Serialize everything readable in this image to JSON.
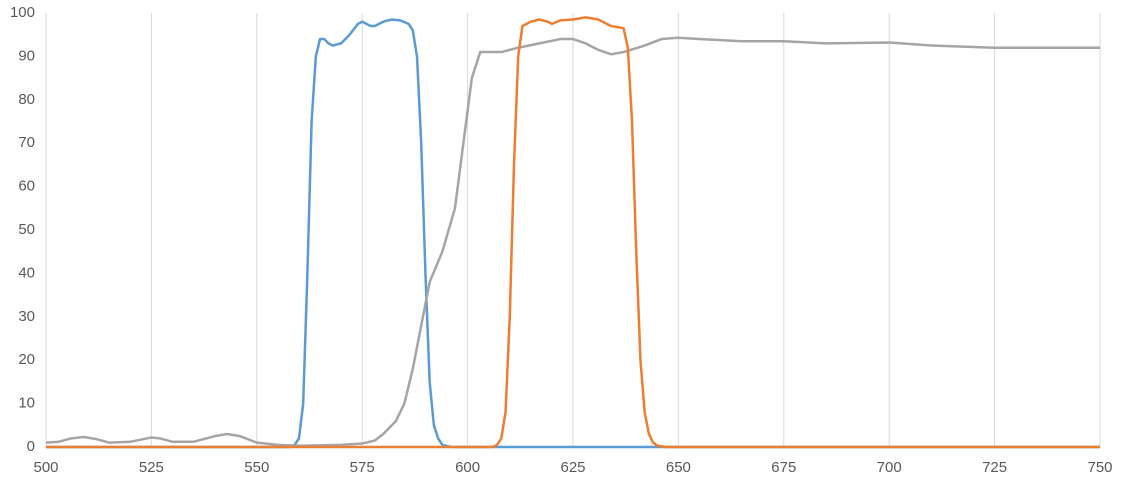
{
  "chart_data": {
    "type": "line",
    "xlim": [
      500,
      750
    ],
    "xticks": [
      500,
      525,
      550,
      575,
      600,
      625,
      650,
      675,
      700,
      725,
      750
    ],
    "ylim": [
      0,
      100
    ],
    "yticks": [
      0,
      10,
      20,
      30,
      40,
      50,
      60,
      70,
      80,
      90,
      100
    ],
    "grid": "x",
    "series": [
      {
        "color": "#5b9bd5",
        "x": [
          500,
          558,
          559,
          560,
          561,
          562,
          563,
          564,
          565,
          566,
          567,
          568,
          570,
          572,
          574,
          575,
          577,
          578,
          580,
          582,
          584,
          586,
          587,
          588,
          589,
          590,
          591,
          592,
          593,
          594,
          596,
          750
        ],
        "values": [
          0,
          0,
          0.5,
          2,
          10,
          40,
          75,
          90,
          94,
          94,
          93,
          92.5,
          93,
          95,
          97.5,
          98,
          97,
          97,
          98,
          98.5,
          98.3,
          97.5,
          96,
          90,
          70,
          40,
          15,
          5,
          2,
          0.5,
          0,
          0
        ]
      },
      {
        "color": "#a5a5a5",
        "x": [
          500,
          503,
          506,
          509,
          512,
          515,
          520,
          525,
          527,
          530,
          535,
          540,
          543,
          546,
          550,
          555,
          560,
          570,
          575,
          578,
          580,
          583,
          585,
          587,
          589,
          591,
          594,
          597,
          599,
          601,
          603,
          605,
          608,
          612,
          617,
          622,
          625,
          628,
          631,
          634,
          637,
          642,
          646,
          650,
          655,
          665,
          675,
          685,
          700,
          710,
          725,
          750
        ],
        "values": [
          1,
          1.2,
          2,
          2.3,
          1.8,
          1,
          1.2,
          2.2,
          2,
          1.2,
          1.2,
          2.5,
          3,
          2.5,
          1,
          0.5,
          0.3,
          0.5,
          0.8,
          1.5,
          3,
          6,
          10,
          18,
          28,
          38,
          45,
          55,
          70,
          85,
          91,
          91,
          91,
          92,
          93,
          94,
          94,
          93,
          91.5,
          90.5,
          91,
          92.5,
          94,
          94.3,
          94,
          93.5,
          93.5,
          93,
          93.2,
          92.5,
          92,
          92
        ]
      },
      {
        "color": "#ed7d31",
        "x": [
          500,
          606,
          607,
          608,
          609,
          610,
          611,
          612,
          613,
          615,
          617,
          619,
          620,
          622,
          625,
          628,
          631,
          634,
          637,
          638,
          639,
          640,
          641,
          642,
          643,
          644,
          645,
          647,
          750
        ],
        "values": [
          0,
          0,
          0.5,
          2,
          8,
          30,
          65,
          90,
          97,
          98,
          98.5,
          98,
          97.5,
          98.3,
          98.5,
          99,
          98.5,
          97,
          96.5,
          92,
          75,
          45,
          20,
          8,
          3,
          1,
          0.3,
          0,
          0
        ]
      }
    ]
  }
}
